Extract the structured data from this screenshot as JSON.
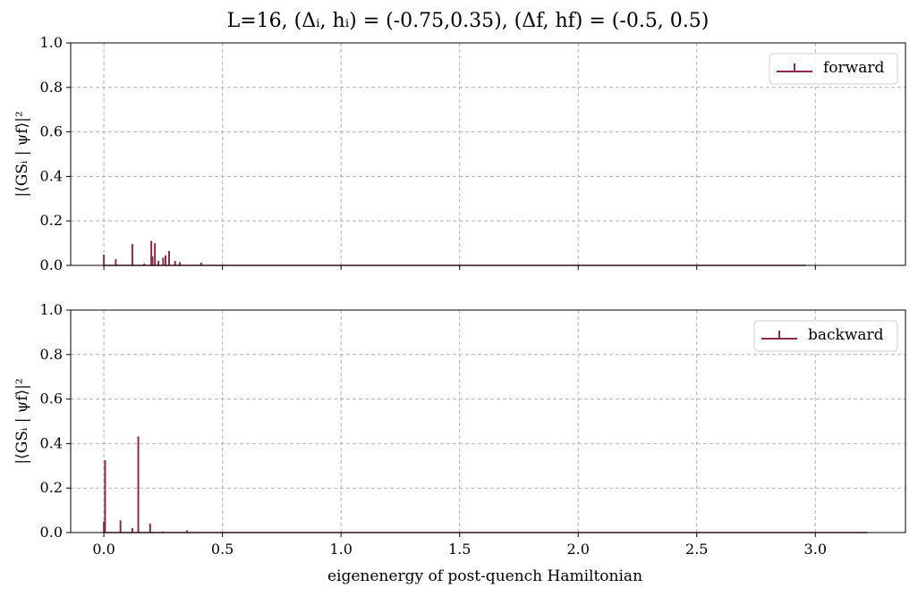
{
  "title": "L=16,     (Δᵢ, hᵢ) = (-0.75,0.35), (Δf, hf) = (-0.5, 0.5)",
  "xlabel": "eigenenergy of post-quench Hamiltonian",
  "colors": {
    "stem": "#8b2a4e",
    "grid": "#b0b0b0",
    "axes": "#000000"
  },
  "chart_data": [
    {
      "type": "bar",
      "panel": "top",
      "ylabel": "|⟨GSᵢ | ψf⟩|²",
      "legend": "forward",
      "legend_position": "upper right",
      "grid": true,
      "xlim": [
        -0.14,
        3.38
      ],
      "ylim": [
        0,
        1.0
      ],
      "xticks": [
        "0.0",
        "0.5",
        "1.0",
        "1.5",
        "2.0",
        "2.5",
        "3.0"
      ],
      "yticks": [
        "0.0",
        "0.2",
        "0.4",
        "0.6",
        "0.8",
        "1.0"
      ],
      "baseline_end": 2.96,
      "points": [
        {
          "x": 0.0,
          "y": 0.048
        },
        {
          "x": 0.05,
          "y": 0.028
        },
        {
          "x": 0.12,
          "y": 0.096
        },
        {
          "x": 0.17,
          "y": 0.008
        },
        {
          "x": 0.2,
          "y": 0.11
        },
        {
          "x": 0.205,
          "y": 0.04
        },
        {
          "x": 0.215,
          "y": 0.1
        },
        {
          "x": 0.23,
          "y": 0.02
        },
        {
          "x": 0.25,
          "y": 0.035
        },
        {
          "x": 0.26,
          "y": 0.045
        },
        {
          "x": 0.275,
          "y": 0.065
        },
        {
          "x": 0.3,
          "y": 0.02
        },
        {
          "x": 0.32,
          "y": 0.015
        },
        {
          "x": 0.41,
          "y": 0.012
        },
        {
          "x": 0.5,
          "y": 0.003
        },
        {
          "x": 1.0,
          "y": 0.002
        }
      ]
    },
    {
      "type": "bar",
      "panel": "bottom",
      "ylabel": "|⟨GSᵢ | ψf⟩|²",
      "legend": "backward",
      "legend_position": "upper right",
      "grid": true,
      "xlim": [
        -0.14,
        3.38
      ],
      "ylim": [
        0,
        1.0
      ],
      "xticks": [
        "0.0",
        "0.5",
        "1.0",
        "1.5",
        "2.0",
        "2.5",
        "3.0"
      ],
      "yticks": [
        "0.0",
        "0.2",
        "0.4",
        "0.6",
        "0.8",
        "1.0"
      ],
      "baseline_end": 3.22,
      "points": [
        {
          "x": 0.0,
          "y": 0.05
        },
        {
          "x": 0.005,
          "y": 0.325
        },
        {
          "x": 0.07,
          "y": 0.055
        },
        {
          "x": 0.12,
          "y": 0.02
        },
        {
          "x": 0.145,
          "y": 0.432
        },
        {
          "x": 0.195,
          "y": 0.04
        },
        {
          "x": 0.25,
          "y": 0.005
        },
        {
          "x": 0.35,
          "y": 0.01
        }
      ]
    }
  ]
}
